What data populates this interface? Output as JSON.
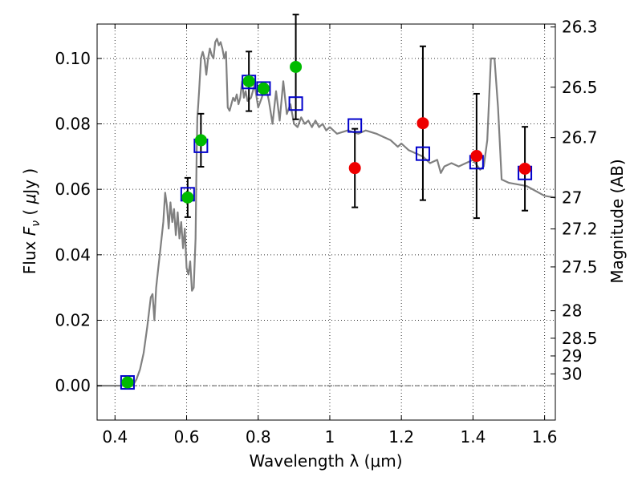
{
  "chart_data": {
    "type": "scatter",
    "xlabel": "Wavelength  λ (μm)",
    "ylabel": "Flux  F_ν  ( μJy )",
    "ylabel_parts": {
      "pre": "Flux  ",
      "var": "F",
      "sub": "ν",
      "mid": "  ( ",
      "mu": "μ",
      "post": "Jy )"
    },
    "y2label": "Magnitude (AB)",
    "xlim": [
      0.35,
      1.63
    ],
    "ylim": [
      -0.0105,
      0.1105
    ],
    "grid": true,
    "x_ticks": [
      0.4,
      0.6,
      0.8,
      1.0,
      1.2,
      1.4,
      1.6
    ],
    "x_tick_labels": [
      "0.4",
      "0.6",
      "0.8",
      "1",
      "1.2",
      "1.4",
      "1.6"
    ],
    "y_ticks": [
      0.0,
      0.02,
      0.04,
      0.06,
      0.08,
      0.1
    ],
    "y_tick_labels": [
      "0.00",
      "0.02",
      "0.04",
      "0.06",
      "0.08",
      "0.10"
    ],
    "y2_ticks": [
      {
        "label": "26.3",
        "flux": 0.1096
      },
      {
        "label": "26.5",
        "flux": 0.0912
      },
      {
        "label": "26.7",
        "flux": 0.0758
      },
      {
        "label": "27",
        "flux": 0.0575
      },
      {
        "label": "27.2",
        "flux": 0.0479
      },
      {
        "label": "27.5",
        "flux": 0.0363
      },
      {
        "label": "28",
        "flux": 0.0229
      },
      {
        "label": "28.5",
        "flux": 0.0145
      },
      {
        "label": "29",
        "flux": 0.0091
      },
      {
        "label": "30",
        "flux": 0.0036
      }
    ],
    "colors": {
      "model": "#808080",
      "model_flux": "#0000cc",
      "optical": "#00bb00",
      "nir": "#ee0000",
      "errorbar": "#000000",
      "zero_line": "#555555"
    },
    "series": [
      {
        "kind": "line",
        "x": [
          0.35,
          0.45,
          0.46,
          0.47,
          0.48,
          0.49,
          0.5,
          0.505,
          0.51,
          0.515,
          0.52,
          0.525,
          0.53,
          0.535,
          0.54,
          0.545,
          0.55,
          0.555,
          0.56,
          0.565,
          0.57,
          0.575,
          0.58,
          0.585,
          0.59,
          0.595,
          0.6,
          0.605,
          0.61,
          0.615,
          0.62,
          0.625,
          0.628,
          0.63,
          0.632,
          0.635,
          0.64,
          0.645,
          0.65,
          0.655,
          0.66,
          0.665,
          0.67,
          0.675,
          0.68,
          0.685,
          0.69,
          0.695,
          0.7,
          0.705,
          0.71,
          0.715,
          0.72,
          0.725,
          0.73,
          0.735,
          0.74,
          0.745,
          0.75,
          0.755,
          0.76,
          0.765,
          0.77,
          0.78,
          0.79,
          0.8,
          0.81,
          0.82,
          0.83,
          0.84,
          0.85,
          0.86,
          0.87,
          0.88,
          0.89,
          0.9,
          0.91,
          0.92,
          0.93,
          0.94,
          0.95,
          0.96,
          0.97,
          0.98,
          0.99,
          1.0,
          1.02,
          1.05,
          1.08,
          1.1,
          1.13,
          1.15,
          1.17,
          1.19,
          1.2,
          1.22,
          1.24,
          1.26,
          1.28,
          1.3,
          1.31,
          1.32,
          1.34,
          1.36,
          1.38,
          1.4,
          1.42,
          1.43,
          1.44,
          1.45,
          1.46,
          1.47,
          1.48,
          1.5,
          1.55,
          1.6,
          1.63
        ],
        "y": [
          0.0,
          0.0,
          0.002,
          0.005,
          0.01,
          0.018,
          0.027,
          0.028,
          0.02,
          0.03,
          0.035,
          0.04,
          0.045,
          0.05,
          0.059,
          0.055,
          0.048,
          0.056,
          0.05,
          0.054,
          0.046,
          0.053,
          0.045,
          0.05,
          0.042,
          0.048,
          0.036,
          0.034,
          0.038,
          0.029,
          0.03,
          0.045,
          0.07,
          0.082,
          0.085,
          0.09,
          0.1,
          0.102,
          0.1,
          0.095,
          0.1,
          0.103,
          0.101,
          0.1,
          0.105,
          0.106,
          0.104,
          0.105,
          0.103,
          0.1,
          0.102,
          0.085,
          0.084,
          0.086,
          0.088,
          0.087,
          0.089,
          0.086,
          0.088,
          0.093,
          0.088,
          0.09,
          0.087,
          0.088,
          0.092,
          0.085,
          0.088,
          0.092,
          0.087,
          0.08,
          0.09,
          0.081,
          0.093,
          0.083,
          0.086,
          0.08,
          0.079,
          0.082,
          0.08,
          0.081,
          0.079,
          0.081,
          0.079,
          0.08,
          0.078,
          0.079,
          0.077,
          0.078,
          0.077,
          0.078,
          0.077,
          0.076,
          0.075,
          0.073,
          0.074,
          0.072,
          0.071,
          0.07,
          0.068,
          0.069,
          0.065,
          0.067,
          0.068,
          0.067,
          0.068,
          0.069,
          0.066,
          0.067,
          0.075,
          0.1,
          0.1,
          0.085,
          0.063,
          0.062,
          0.061,
          0.058,
          0.0575
        ]
      },
      {
        "kind": "open-square",
        "color_key": "model_flux",
        "x": [
          0.435,
          0.603,
          0.64,
          0.774,
          0.815,
          0.905,
          1.07,
          1.26,
          1.41,
          1.545
        ],
        "y": [
          0.001,
          0.0585,
          0.0733,
          0.0928,
          0.0908,
          0.0862,
          0.0795,
          0.0709,
          0.0683,
          0.065
        ]
      },
      {
        "kind": "filled-circle",
        "color_key": "optical",
        "x": [
          0.435,
          0.603,
          0.64,
          0.774,
          0.815,
          0.905
        ],
        "y": [
          0.001,
          0.0575,
          0.075,
          0.093,
          0.0908,
          0.0974
        ],
        "yerr": [
          null,
          0.006,
          0.0081,
          0.0091,
          null,
          0.016
        ]
      },
      {
        "kind": "filled-circle",
        "color_key": "nir",
        "x": [
          1.07,
          1.26,
          1.41,
          1.545
        ],
        "y": [
          0.0665,
          0.0802,
          0.0702,
          0.0663
        ],
        "yerr": [
          0.012,
          0.0235,
          0.019,
          0.0128
        ]
      }
    ]
  }
}
